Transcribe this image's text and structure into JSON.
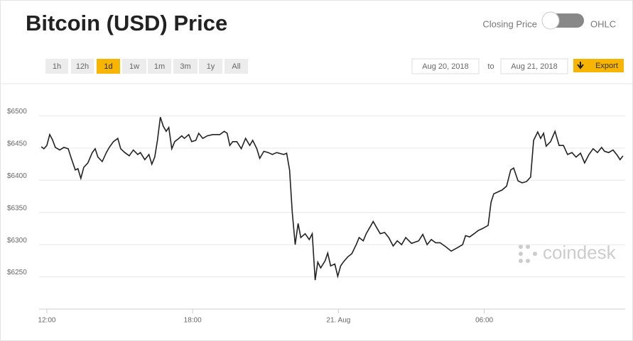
{
  "header": {
    "title": "Bitcoin (USD) Price",
    "toggle_left": "Closing Price",
    "toggle_right": "OHLC"
  },
  "ranges": [
    "1h",
    "12h",
    "1d",
    "1w",
    "1m",
    "3m",
    "1y",
    "All"
  ],
  "selected_range": "1d",
  "dates": {
    "from": "Aug 20, 2018",
    "to_label": "to",
    "to": "Aug 21, 2018",
    "export": "Export"
  },
  "watermark": "coindesk",
  "chart_data": {
    "type": "line",
    "color": "#222222",
    "grid": true,
    "x": [
      -0.23,
      -0.12,
      0,
      0.12,
      0.23,
      0.35,
      0.53,
      0.7,
      0.88,
      0.99,
      1.17,
      1.28,
      1.4,
      1.52,
      1.69,
      1.87,
      1.99,
      2.1,
      2.28,
      2.45,
      2.57,
      2.74,
      2.92,
      3.04,
      3.21,
      3.39,
      3.56,
      3.74,
      3.85,
      4.03,
      4.2,
      4.32,
      4.44,
      4.55,
      4.67,
      4.79,
      4.91,
      5.02,
      5.14,
      5.26,
      5.43,
      5.55,
      5.66,
      5.84,
      5.96,
      6.13,
      6.25,
      6.42,
      6.6,
      6.83,
      7.12,
      7.3,
      7.42,
      7.53,
      7.65,
      7.82,
      8.0,
      8.18,
      8.35,
      8.47,
      8.64,
      8.76,
      8.93,
      9.11,
      9.28,
      9.46,
      9.75,
      9.87,
      9.99,
      10.1,
      10.22,
      10.34,
      10.45,
      10.63,
      10.8,
      10.92,
      11.04,
      11.15,
      11.27,
      11.45,
      11.56,
      11.68,
      11.85,
      11.97,
      12.09,
      12.2,
      12.38,
      12.55,
      12.73,
      12.85,
      13.02,
      13.14,
      13.31,
      13.43,
      13.55,
      13.72,
      13.9,
      14.07,
      14.25,
      14.42,
      14.6,
      14.77,
      15.01,
      15.3,
      15.47,
      15.65,
      15.82,
      16.0,
      16.18,
      16.41,
      16.64,
      16.88,
      17.11,
      17.23,
      17.4,
      17.58,
      17.75,
      17.93,
      18.16,
      18.28,
      18.39,
      18.57,
      18.74,
      18.92,
      19.09,
      19.21,
      19.39,
      19.56,
      19.74,
      19.91,
      20.03,
      20.2,
      20.32,
      20.44,
      20.55,
      20.73,
      20.91,
      21.08,
      21.26,
      21.43,
      21.61,
      21.78,
      21.96,
      22.13,
      22.31,
      22.48,
      22.66,
      22.83,
      22.95,
      23.12,
      23.3,
      23.47,
      23.59,
      23.71
    ],
    "values": [
      6452,
      6449,
      6454,
      6471,
      6463,
      6451,
      6447,
      6451,
      6449,
      6436,
      6416,
      6418,
      6403,
      6420,
      6427,
      6443,
      6449,
      6436,
      6429,
      6443,
      6451,
      6460,
      6465,
      6449,
      6443,
      6438,
      6447,
      6440,
      6443,
      6432,
      6440,
      6425,
      6436,
      6462,
      6498,
      6484,
      6476,
      6482,
      6449,
      6460,
      6465,
      6469,
      6465,
      6471,
      6460,
      6462,
      6473,
      6465,
      6469,
      6471,
      6471,
      6476,
      6473,
      6454,
      6460,
      6460,
      6449,
      6465,
      6454,
      6462,
      6449,
      6434,
      6445,
      6443,
      6440,
      6443,
      6440,
      6442,
      6416,
      6350,
      6300,
      6333,
      6311,
      6317,
      6308,
      6317,
      6245,
      6273,
      6264,
      6275,
      6287,
      6267,
      6270,
      6251,
      6267,
      6273,
      6281,
      6286,
      6300,
      6311,
      6306,
      6317,
      6328,
      6336,
      6328,
      6317,
      6319,
      6311,
      6298,
      6306,
      6300,
      6311,
      6302,
      6306,
      6316,
      6300,
      6308,
      6303,
      6303,
      6297,
      6290,
      6295,
      6300,
      6314,
      6312,
      6317,
      6322,
      6325,
      6330,
      6366,
      6379,
      6382,
      6385,
      6391,
      6416,
      6419,
      6399,
      6396,
      6398,
      6405,
      6462,
      6475,
      6465,
      6473,
      6453,
      6460,
      6476,
      6454,
      6454,
      6440,
      6443,
      6436,
      6442,
      6427,
      6440,
      6449,
      6443,
      6451,
      6445,
      6443,
      6447,
      6439,
      6432,
      6438
    ],
    "xlim": [
      -0.32,
      23.8
    ],
    "xticks": [
      {
        "value": 0,
        "label": "12:00"
      },
      {
        "value": 6,
        "label": "18:00"
      },
      {
        "value": 12,
        "label": "21. Aug"
      },
      {
        "value": 18,
        "label": "06:00"
      }
    ],
    "ylim": [
      6200,
      6550
    ],
    "yticks": [
      {
        "value": 6250,
        "label": "$6250"
      },
      {
        "value": 6300,
        "label": "$6300"
      },
      {
        "value": 6350,
        "label": "$6350"
      },
      {
        "value": 6400,
        "label": "$6400"
      },
      {
        "value": 6450,
        "label": "$6450"
      },
      {
        "value": 6500,
        "label": "$6500"
      }
    ]
  }
}
